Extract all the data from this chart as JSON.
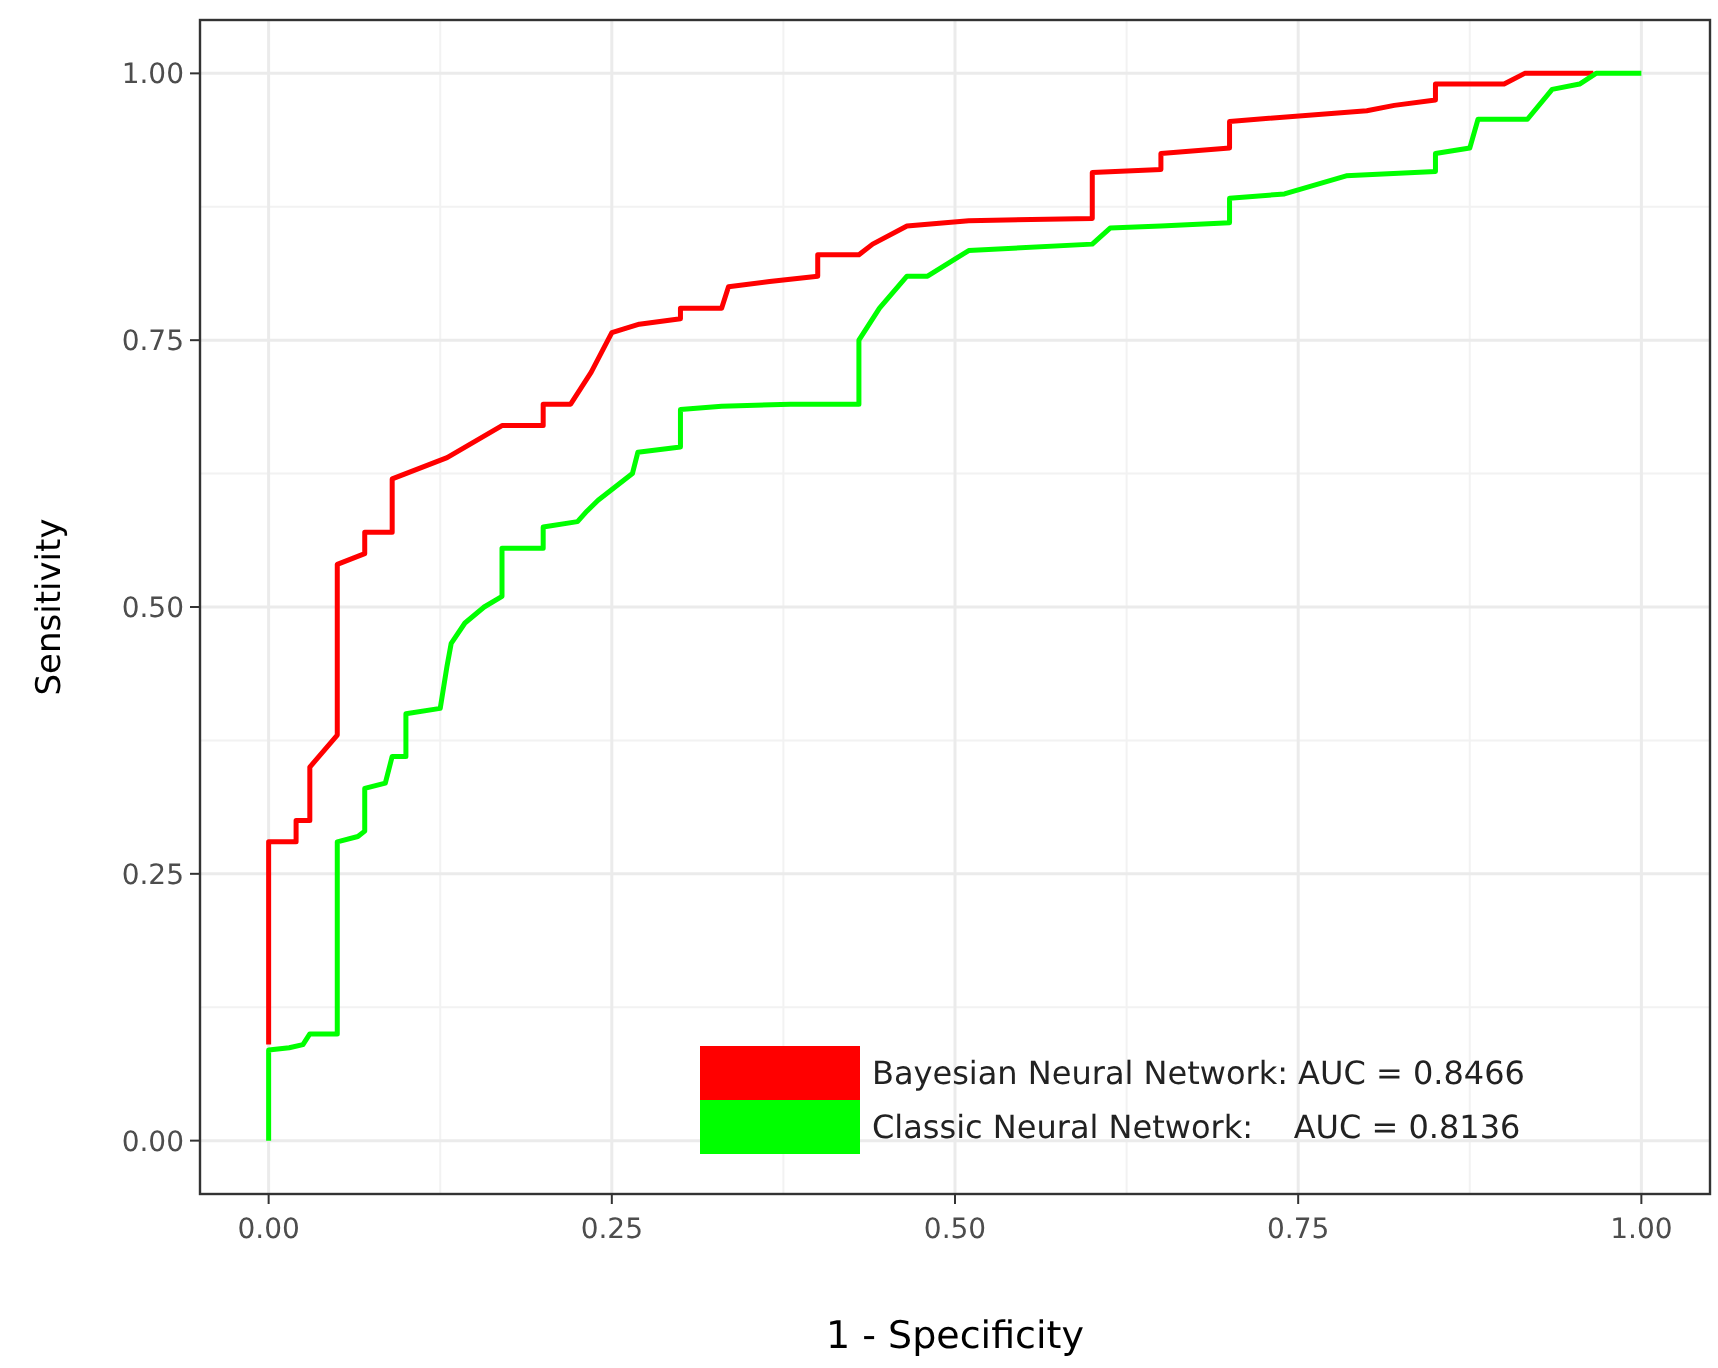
{
  "chart_data": {
    "type": "line",
    "xlabel": "1 - Specificity",
    "ylabel": "Sensitivity",
    "xlim": [
      -0.05,
      1.05
    ],
    "ylim": [
      -0.05,
      1.05
    ],
    "xticks": [
      {
        "value": 0,
        "label": "0.00"
      },
      {
        "value": 0.25,
        "label": "0.25"
      },
      {
        "value": 0.5,
        "label": "0.50"
      },
      {
        "value": 0.75,
        "label": "0.75"
      },
      {
        "value": 1,
        "label": "1.00"
      }
    ],
    "yticks": [
      {
        "value": 0,
        "label": "0.00"
      },
      {
        "value": 0.25,
        "label": "0.25"
      },
      {
        "value": 0.5,
        "label": "0.50"
      },
      {
        "value": 0.75,
        "label": "0.75"
      },
      {
        "value": 1,
        "label": "1.00"
      }
    ],
    "grid": true,
    "legend": "bottom right",
    "marker": "none",
    "line_style": "solid",
    "series": [
      {
        "name": "Bayesian Neural Network: AUC = 0.8466",
        "color": "#ff0000",
        "x": [
          0,
          0,
          0.02,
          0.02,
          0.03,
          0.03,
          0.05,
          0.05,
          0.07,
          0.07,
          0.09,
          0.09,
          0.13,
          0.15,
          0.17,
          0.2,
          0.2,
          0.22,
          0.235,
          0.25,
          0.27,
          0.3,
          0.3,
          0.33,
          0.335,
          0.365,
          0.4,
          0.4,
          0.43,
          0.44,
          0.465,
          0.51,
          0.6,
          0.6,
          0.65,
          0.65,
          0.7,
          0.7,
          0.8,
          0.82,
          0.85,
          0.85,
          0.9,
          0.915,
          0.965
        ],
        "values": [
          0.09,
          0.28,
          0.28,
          0.3,
          0.3,
          0.35,
          0.38,
          0.54,
          0.55,
          0.57,
          0.57,
          0.62,
          0.64,
          0.655,
          0.67,
          0.67,
          0.69,
          0.69,
          0.72,
          0.757,
          0.765,
          0.77,
          0.78,
          0.78,
          0.8,
          0.805,
          0.81,
          0.83,
          0.83,
          0.84,
          0.857,
          0.862,
          0.864,
          0.907,
          0.91,
          0.925,
          0.93,
          0.955,
          0.965,
          0.97,
          0.975,
          0.99,
          0.99,
          1,
          1
        ]
      },
      {
        "name": "Classic Neural Network:    AUC = 0.8136",
        "color": "#00ff00",
        "x": [
          0,
          0,
          0.015,
          0.025,
          0.03,
          0.05,
          0.05,
          0.065,
          0.07,
          0.07,
          0.085,
          0.09,
          0.1,
          0.1,
          0.125,
          0.13,
          0.133,
          0.143,
          0.157,
          0.17,
          0.17,
          0.2,
          0.2,
          0.225,
          0.232,
          0.24,
          0.265,
          0.269,
          0.3,
          0.3,
          0.33,
          0.38,
          0.43,
          0.43,
          0.445,
          0.465,
          0.48,
          0.51,
          0.6,
          0.613,
          0.65,
          0.7,
          0.7,
          0.74,
          0.785,
          0.85,
          0.85,
          0.875,
          0.881,
          0.917,
          0.935,
          0.955,
          0.967,
          1
        ],
        "values": [
          0,
          0.085,
          0.087,
          0.09,
          0.1,
          0.1,
          0.28,
          0.285,
          0.29,
          0.33,
          0.335,
          0.36,
          0.36,
          0.4,
          0.405,
          0.445,
          0.466,
          0.485,
          0.5,
          0.51,
          0.555,
          0.555,
          0.575,
          0.58,
          0.59,
          0.6,
          0.625,
          0.645,
          0.65,
          0.685,
          0.688,
          0.69,
          0.69,
          0.75,
          0.78,
          0.81,
          0.81,
          0.834,
          0.84,
          0.855,
          0.857,
          0.86,
          0.883,
          0.887,
          0.904,
          0.908,
          0.925,
          0.93,
          0.957,
          0.957,
          0.985,
          0.99,
          1,
          1
        ]
      }
    ]
  }
}
